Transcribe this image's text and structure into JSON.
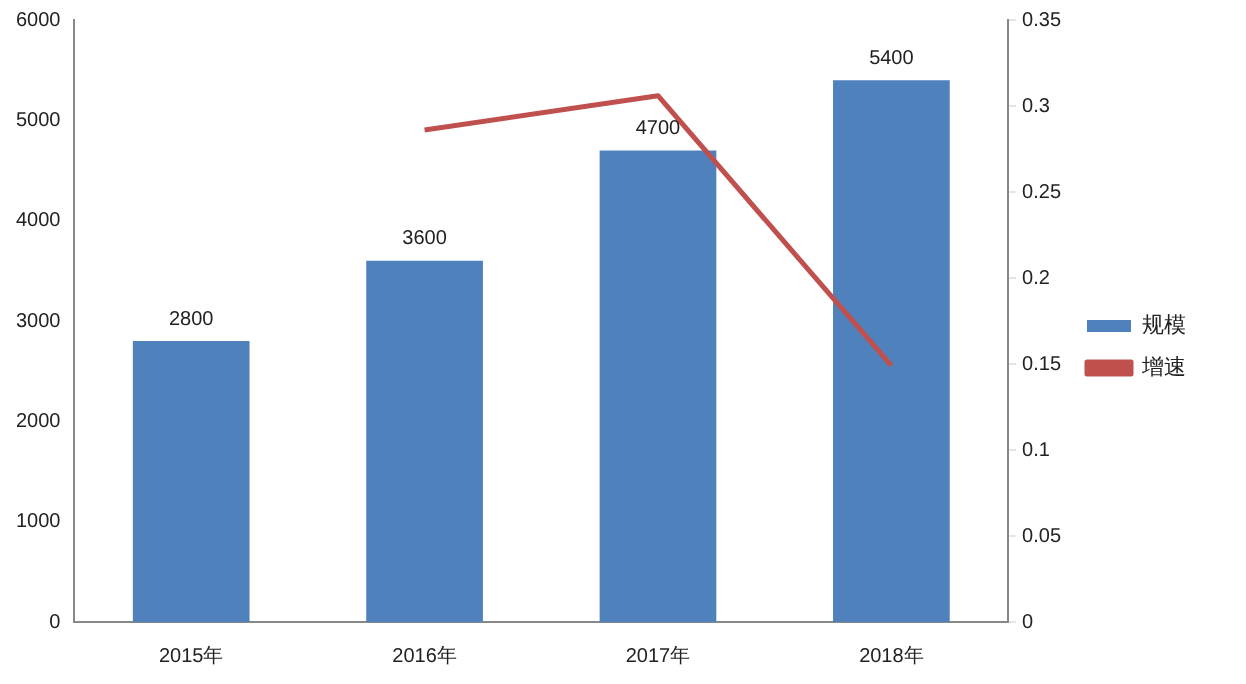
{
  "chart_data": {
    "type": "bar",
    "categories": [
      "2015年",
      "2016年",
      "2017年",
      "2018年"
    ],
    "series": [
      {
        "name": "规模",
        "color": "#4f81bd",
        "values": [
          2800,
          3600,
          4700,
          5400
        ],
        "value_labels": [
          "2800",
          "3600",
          "4700",
          "5400"
        ]
      },
      {
        "name": "增速",
        "type": "line",
        "axis": "y2",
        "color": "#c0504d",
        "values": [
          null,
          0.286,
          0.306,
          0.149
        ],
        "marker": "none"
      }
    ],
    "ylim": [
      0,
      6000
    ],
    "yticks": [
      0,
      1000,
      2000,
      3000,
      4000,
      5000,
      6000
    ],
    "y2lim": [
      0,
      0.35
    ],
    "y2ticks": [
      0,
      0.05,
      0.1,
      0.15,
      0.2,
      0.25,
      0.3,
      0.35
    ],
    "grid": false,
    "legend": "right"
  }
}
